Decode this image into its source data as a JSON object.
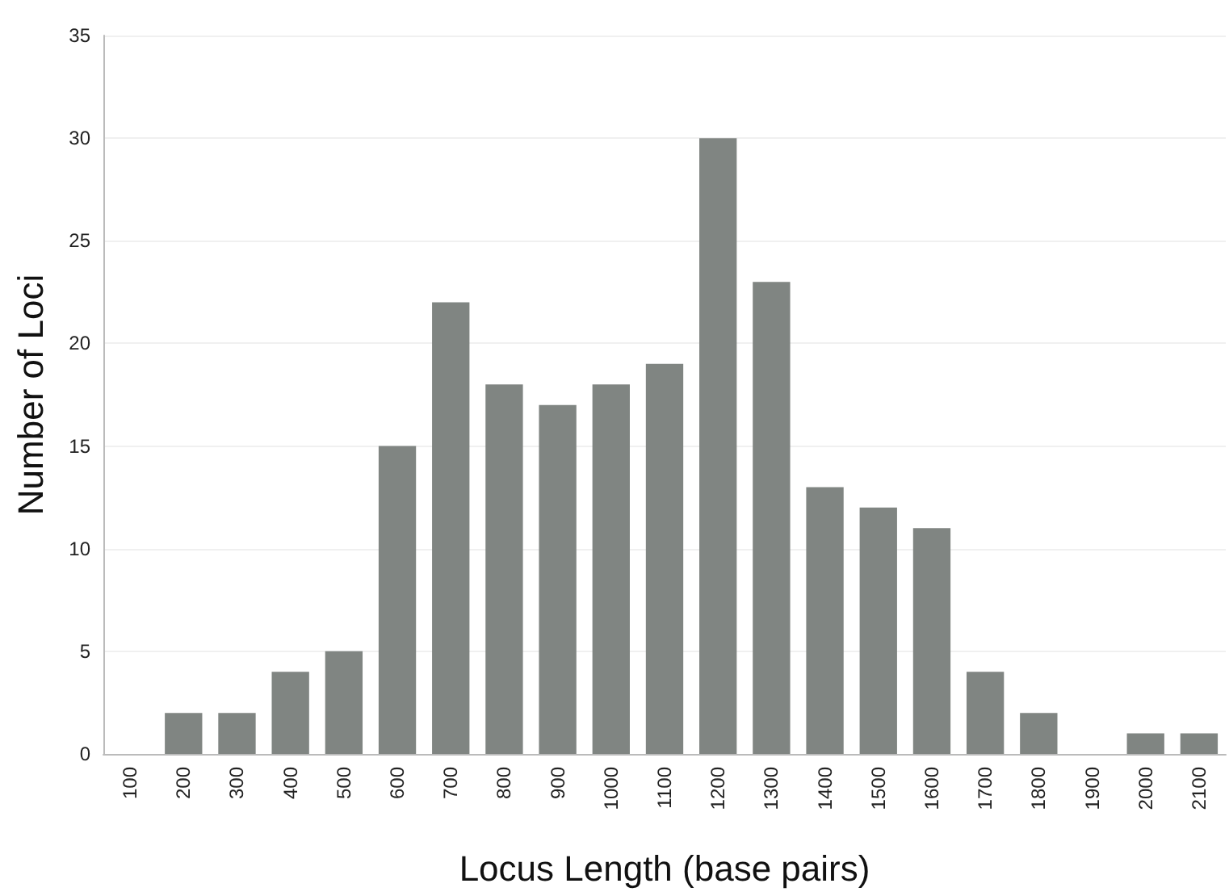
{
  "chart_data": {
    "type": "bar",
    "xlabel": "Locus Length (base pairs)",
    "ylabel": "Number of Loci",
    "categories": [
      "100",
      "200",
      "300",
      "400",
      "500",
      "600",
      "700",
      "800",
      "900",
      "1000",
      "1100",
      "1200",
      "1300",
      "1400",
      "1500",
      "1600",
      "1700",
      "1800",
      "1900",
      "2000",
      "2100"
    ],
    "values": [
      0,
      2,
      2,
      4,
      5,
      15,
      22,
      18,
      17,
      18,
      19,
      30,
      23,
      13,
      12,
      11,
      4,
      2,
      0,
      1,
      1
    ],
    "color": "#808582",
    "ylim": [
      0,
      35
    ],
    "yticks": [
      0,
      5,
      10,
      15,
      20,
      25,
      30,
      35
    ],
    "grid": "y"
  }
}
